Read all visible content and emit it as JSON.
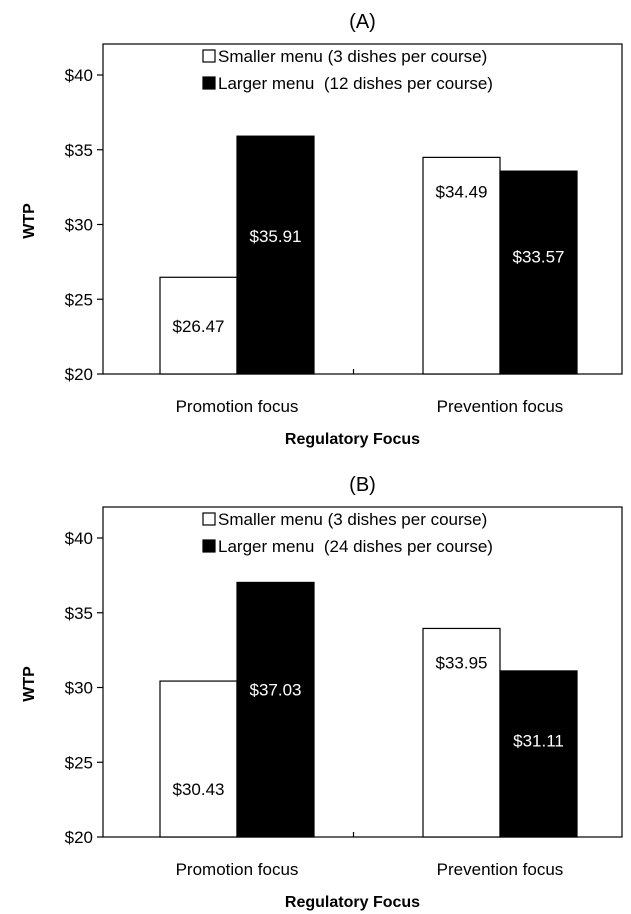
{
  "chart_data": [
    {
      "type": "bar",
      "title": "(A)",
      "xlabel": "Regulatory Focus",
      "ylabel": "WTP",
      "ylim": [
        20,
        40
      ],
      "yticks": [
        "$20",
        "$25",
        "$30",
        "$35",
        "$40"
      ],
      "categories": [
        "Promotion focus",
        "Prevention focus"
      ],
      "legend_position": "top-center",
      "series": [
        {
          "name": "Smaller menu (3 dishes per course)",
          "color": "#ffffff",
          "values": [
            26.47,
            34.49
          ],
          "labels": [
            "$26.47",
            "$34.49"
          ]
        },
        {
          "name": "Larger menu  (12 dishes per course)",
          "color": "#000000",
          "values": [
            35.91,
            33.57
          ],
          "labels": [
            "$35.91",
            "$33.57"
          ]
        }
      ]
    },
    {
      "type": "bar",
      "title": "(B)",
      "xlabel": "Regulatory Focus",
      "ylabel": "WTP",
      "ylim": [
        20,
        40
      ],
      "yticks": [
        "$20",
        "$25",
        "$30",
        "$35",
        "$40"
      ],
      "categories": [
        "Promotion focus",
        "Prevention focus"
      ],
      "legend_position": "top-center",
      "series": [
        {
          "name": "Smaller menu (3 dishes per course)",
          "color": "#ffffff",
          "values": [
            30.43,
            33.95
          ],
          "labels": [
            "$30.43",
            "$33.95"
          ]
        },
        {
          "name": "Larger menu  (24 dishes per course)",
          "color": "#000000",
          "values": [
            37.03,
            31.11
          ],
          "labels": [
            "$37.03",
            "$31.11"
          ]
        }
      ]
    }
  ]
}
